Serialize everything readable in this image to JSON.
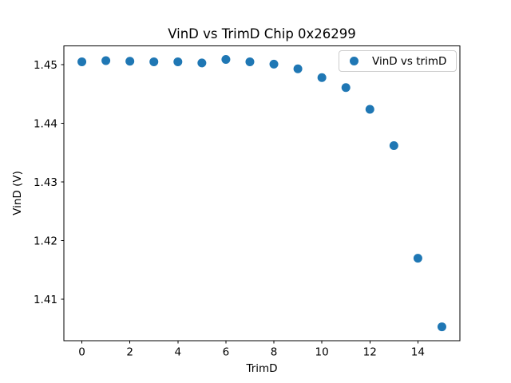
{
  "title": "VinD vs TrimD Chip 0x26299",
  "legend": {
    "label": "VinD vs trimD"
  },
  "chart_data": {
    "type": "scatter",
    "title": "VinD vs TrimD Chip 0x26299",
    "xlabel": "TrimD",
    "ylabel": "VinD (V)",
    "legend_label": "VinD vs trimD",
    "legend_position": "upper right",
    "marker_color": "#1f77b4",
    "grid": false,
    "x": [
      0,
      1,
      2,
      3,
      4,
      5,
      6,
      7,
      8,
      9,
      10,
      11,
      12,
      13,
      14,
      15
    ],
    "y": [
      1.4505,
      1.4507,
      1.4506,
      1.4505,
      1.4505,
      1.4503,
      1.4509,
      1.4505,
      1.4501,
      1.4493,
      1.4478,
      1.4461,
      1.4424,
      1.4362,
      1.417,
      1.4053
    ],
    "xlim": [
      -0.75,
      15.75
    ],
    "ylim": [
      1.4029,
      1.4532
    ],
    "xtick_values": [
      0,
      2,
      4,
      6,
      8,
      10,
      12,
      14
    ],
    "xtick_labels": [
      "0",
      "2",
      "4",
      "6",
      "8",
      "10",
      "12",
      "14"
    ],
    "ytick_values": [
      1.41,
      1.42,
      1.43,
      1.44,
      1.45
    ],
    "ytick_labels": [
      "1.41",
      "1.42",
      "1.43",
      "1.44",
      "1.45"
    ]
  }
}
